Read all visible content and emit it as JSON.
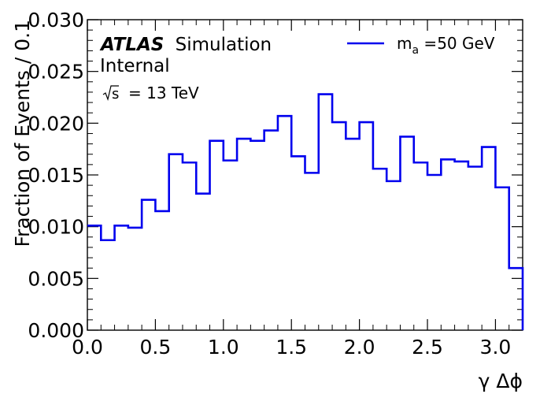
{
  "chart_data": {
    "type": "step",
    "experiment": "ATLAS",
    "experiment_tag": "Simulation",
    "status": "Internal",
    "energy_label": "s",
    "energy_value": "= 13 TeV",
    "xlabel": "γ Δϕ",
    "ylabel": "Fraction of Events / 0.1",
    "xlim": [
      0.0,
      3.2
    ],
    "ylim": [
      0.0,
      0.03
    ],
    "x_ticks": [
      0.0,
      0.5,
      1.0,
      1.5,
      2.0,
      2.5,
      3.0
    ],
    "x_tick_labels": [
      "0.0",
      "0.5",
      "1.0",
      "1.5",
      "2.0",
      "2.5",
      "3.0"
    ],
    "y_ticks": [
      0.0,
      0.005,
      0.01,
      0.015,
      0.02,
      0.025,
      0.03
    ],
    "y_tick_labels": [
      "0.000",
      "0.005",
      "0.010",
      "0.015",
      "0.020",
      "0.025",
      "0.030"
    ],
    "legend_position": "top-right",
    "series": [
      {
        "name_main": "m",
        "name_sub": "a",
        "name_rest": " =50 GeV",
        "color": "#0000ee",
        "bin_edges": [
          0.0,
          0.1,
          0.2,
          0.3,
          0.4,
          0.5,
          0.6,
          0.7,
          0.8,
          0.9,
          1.0,
          1.1,
          1.2,
          1.3,
          1.4,
          1.5,
          1.6,
          1.7,
          1.8,
          1.9,
          2.0,
          2.1,
          2.2,
          2.3,
          2.4,
          2.5,
          2.6,
          2.7,
          2.8,
          2.9,
          3.0,
          3.1,
          3.2
        ],
        "values": [
          0.0101,
          0.0087,
          0.0101,
          0.0099,
          0.0126,
          0.0115,
          0.017,
          0.0162,
          0.0132,
          0.0183,
          0.0164,
          0.0185,
          0.0183,
          0.0193,
          0.0207,
          0.0168,
          0.0152,
          0.0228,
          0.0201,
          0.0185,
          0.0201,
          0.0156,
          0.0144,
          0.0187,
          0.0162,
          0.015,
          0.0165,
          0.0163,
          0.0158,
          0.0177,
          0.0138,
          0.006
        ]
      }
    ]
  }
}
